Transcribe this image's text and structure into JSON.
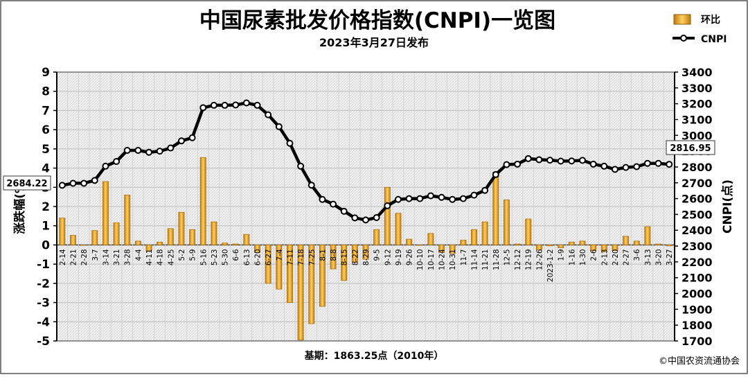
{
  "header": {
    "title": "中国尿素批发价格指数(CNPI)一览图",
    "subtitle": "2023年3月27日发布"
  },
  "footer": {
    "base_note": "基期：1863.25点（2010年）",
    "copyright": "©中国农资流通协会"
  },
  "callouts": {
    "start_value": "2684.22",
    "end_value": "2816.95"
  },
  "colors": {
    "bar_fill": "#f0b030",
    "bar_edge": "#b07010",
    "line": "#000000",
    "plot_background": "#f6f6f6",
    "grid": "#c8c8c8"
  },
  "chart_data": {
    "type": "bar",
    "title": "中国尿素批发价格指数(CNPI)一览图",
    "subtitle": "2023年3月27日发布",
    "legend": {
      "position": "top-right"
    },
    "grid": true,
    "x_ticks": [
      "2-14",
      "2-21",
      "2-28",
      "3-7",
      "3-14",
      "3-21",
      "3-28",
      "4-4",
      "4-11",
      "4-18",
      "4-25",
      "5-2",
      "5-9",
      "5-16",
      "5-23",
      "5-30",
      "6-6",
      "6-13",
      "6-20",
      "6-27",
      "7-4",
      "7-11",
      "7-18",
      "7-25",
      "8-1",
      "8-8",
      "8-15",
      "8-22",
      "8-29",
      "9-5",
      "9-12",
      "9-19",
      "9-26",
      "10-10",
      "10-17",
      "10-24",
      "10-31",
      "11-7",
      "11-14",
      "11-21",
      "11-28",
      "12-5",
      "12-12",
      "12-19",
      "12-26",
      "2023-1-2",
      "1-9",
      "1-16",
      "1-30",
      "2-6",
      "2-13",
      "2-20",
      "2-27",
      "3-6",
      "3-13",
      "3-20",
      "3-27"
    ],
    "left_axis": {
      "label": "涨跌幅(%)",
      "ylim": [
        -5,
        9
      ],
      "ticks": [
        "9",
        "8",
        "7",
        "6",
        "5",
        "4",
        "3",
        "2",
        "1",
        "0",
        "-1",
        "-2",
        "-3",
        "-4",
        "-5"
      ]
    },
    "right_axis": {
      "label": "CNPI(点)",
      "ylim": [
        1700,
        3400
      ],
      "ticks": [
        "3400",
        "3300",
        "3200",
        "3100",
        "3000",
        "2900",
        "2800",
        "2700",
        "2600",
        "2500",
        "2400",
        "2300",
        "2200",
        "2100",
        "2000",
        "1900",
        "1800",
        "1700"
      ]
    },
    "series": [
      {
        "name": "环比",
        "type": "bar",
        "axis": "left",
        "values": [
          1.4,
          0.5,
          0.0,
          0.75,
          3.3,
          1.15,
          2.6,
          0.2,
          -0.3,
          0.15,
          0.85,
          1.7,
          0.8,
          4.55,
          1.2,
          0.1,
          0.05,
          0.55,
          -0.4,
          -2.0,
          -2.3,
          -3.0,
          -4.95,
          -4.1,
          -3.2,
          -1.25,
          -1.85,
          -0.9,
          -0.75,
          0.8,
          3.0,
          1.65,
          0.3,
          0.0,
          0.6,
          -0.4,
          -0.45,
          0.25,
          0.8,
          1.2,
          3.8,
          2.35,
          0.05,
          1.35,
          -0.25,
          -0.05,
          -0.15,
          0.15,
          0.2,
          -0.3,
          -0.35,
          -0.3,
          0.45,
          0.2,
          0.95,
          0.05,
          -0.05
        ]
      },
      {
        "name": "CNPI",
        "type": "line",
        "axis": "right",
        "values": [
          2684.22,
          2697,
          2697,
          2715,
          2805,
          2835,
          2905,
          2905,
          2893,
          2900,
          2920,
          2965,
          2985,
          3175,
          3190,
          3190,
          3192,
          3205,
          3190,
          3130,
          3055,
          2950,
          2805,
          2685,
          2595,
          2565,
          2520,
          2478,
          2465,
          2480,
          2555,
          2595,
          2600,
          2600,
          2618,
          2608,
          2595,
          2600,
          2622,
          2652,
          2752,
          2815,
          2818,
          2853,
          2846,
          2843,
          2837,
          2838,
          2842,
          2818,
          2805,
          2785,
          2797,
          2802,
          2823,
          2823,
          2816.95
        ]
      }
    ]
  }
}
